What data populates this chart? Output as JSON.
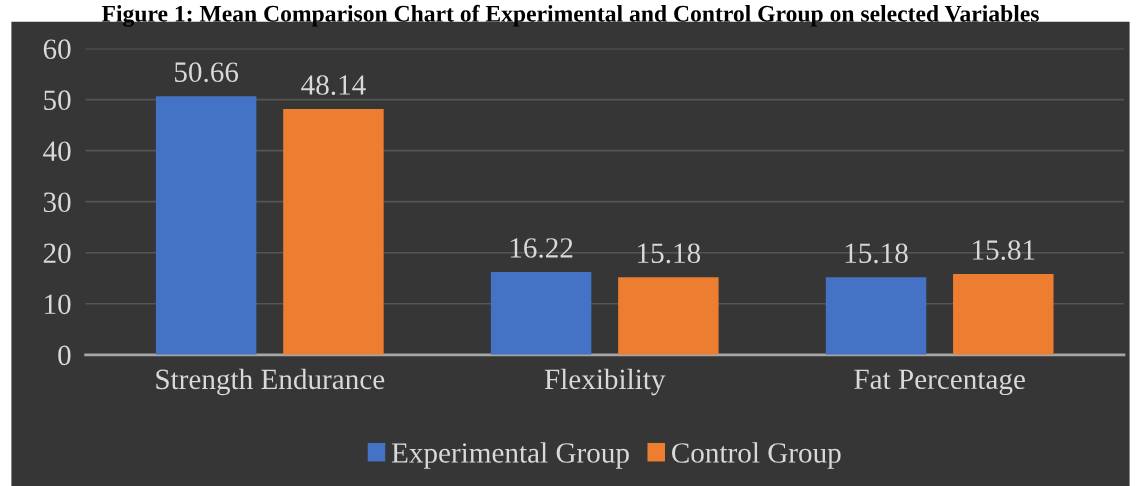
{
  "chart_data": {
    "type": "bar",
    "title": "Figure 1: Mean Comparison Chart of Experimental and Control Group on selected Variables",
    "categories": [
      "Strength Endurance",
      "Flexibility",
      "Fat Percentage"
    ],
    "series": [
      {
        "name": "Experimental Group",
        "color": "#4472c4",
        "values": [
          50.66,
          16.22,
          15.18
        ]
      },
      {
        "name": "Control Group",
        "color": "#ed7d31",
        "values": [
          48.14,
          15.18,
          15.81
        ]
      }
    ],
    "ylim": [
      0,
      60
    ],
    "yticks": [
      0,
      10,
      20,
      30,
      40,
      50,
      60
    ],
    "grid": "y",
    "legend": "bottom",
    "data_labels": true
  }
}
